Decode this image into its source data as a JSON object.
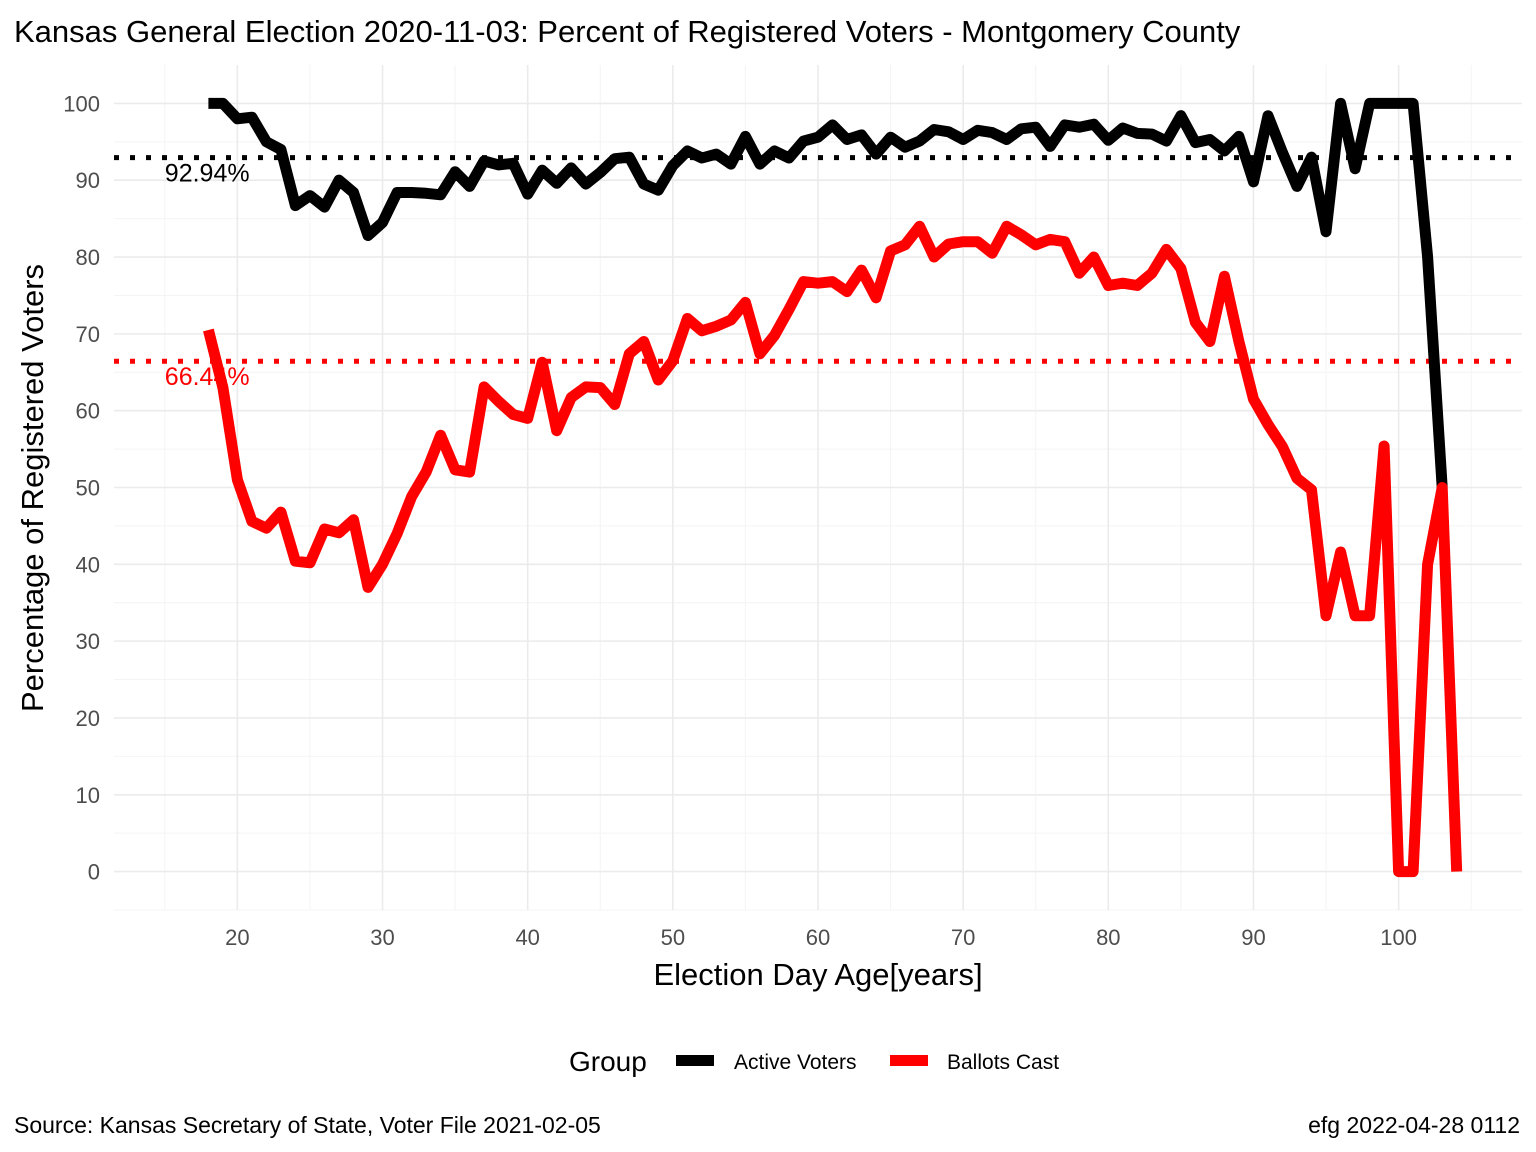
{
  "chart_data": {
    "type": "line",
    "title": "Kansas General Election 2020-11-03:  Percent of Registered Voters - Montgomery County",
    "xlabel": "Election Day Age[years]",
    "ylabel": "Percentage of Registered Voters",
    "xlim": [
      11.5,
      108.5
    ],
    "ylim": [
      -5,
      105
    ],
    "x_ticks": [
      20,
      30,
      40,
      50,
      60,
      70,
      80,
      90,
      100
    ],
    "y_ticks": [
      0,
      10,
      20,
      30,
      40,
      50,
      60,
      70,
      80,
      90,
      100
    ],
    "grid": true,
    "legend": {
      "title": "Group",
      "position": "bottom"
    },
    "series": [
      {
        "name": "Active Voters",
        "color": "#000000",
        "x": [
          18,
          19,
          20,
          21,
          22,
          23,
          24,
          25,
          26,
          27,
          28,
          29,
          30,
          31,
          32,
          33,
          34,
          35,
          36,
          37,
          38,
          39,
          40,
          41,
          42,
          43,
          44,
          45,
          46,
          47,
          48,
          49,
          50,
          51,
          52,
          53,
          54,
          55,
          56,
          57,
          58,
          59,
          60,
          61,
          62,
          63,
          64,
          65,
          66,
          67,
          68,
          69,
          70,
          71,
          72,
          73,
          74,
          75,
          76,
          77,
          78,
          79,
          80,
          81,
          82,
          83,
          84,
          85,
          86,
          87,
          88,
          89,
          90,
          91,
          92,
          93,
          94,
          95,
          96,
          97,
          98,
          99,
          100,
          101,
          102,
          103
        ],
        "y": [
          100,
          100,
          98,
          98.2,
          95,
          94,
          86.7,
          88,
          86.5,
          90,
          88.4,
          82.8,
          84.5,
          88.4,
          88.4,
          88.3,
          88.1,
          91.1,
          89.2,
          92.5,
          92,
          92.2,
          88.2,
          91.3,
          89.6,
          91.6,
          89.5,
          91,
          92.8,
          93,
          89.5,
          88.7,
          91.9,
          93.8,
          92.9,
          93.4,
          92.1,
          95.7,
          92.1,
          93.8,
          92.9,
          95.1,
          95.6,
          97.2,
          95.3,
          95.9,
          93.4,
          95.6,
          94.3,
          95.1,
          96.6,
          96.3,
          95.3,
          96.5,
          96.2,
          95.3,
          96.7,
          96.9,
          94.4,
          97.2,
          96.9,
          97.3,
          95.2,
          96.8,
          96.1,
          96,
          95.1,
          98.4,
          94.9,
          95.3,
          93.8,
          95.7,
          89.8,
          98.4,
          93.6,
          89.2,
          93,
          83.3,
          100,
          91.5,
          100,
          100,
          100,
          100,
          80,
          50
        ]
      },
      {
        "name": "Ballots Cast",
        "color": "#ff0000",
        "x": [
          18,
          19,
          20,
          21,
          22,
          23,
          24,
          25,
          26,
          27,
          28,
          29,
          30,
          31,
          32,
          33,
          34,
          35,
          36,
          37,
          38,
          39,
          40,
          41,
          42,
          43,
          44,
          45,
          46,
          47,
          48,
          49,
          50,
          51,
          52,
          53,
          54,
          55,
          56,
          57,
          58,
          59,
          60,
          61,
          62,
          63,
          64,
          65,
          66,
          67,
          68,
          69,
          70,
          71,
          72,
          73,
          74,
          75,
          76,
          77,
          78,
          79,
          80,
          81,
          82,
          83,
          84,
          85,
          86,
          87,
          88,
          89,
          90,
          91,
          92,
          93,
          94,
          95,
          96,
          97,
          98,
          99,
          100,
          101,
          102,
          103,
          104
        ],
        "y": [
          70.5,
          63,
          51,
          45.6,
          44.7,
          46.8,
          40.4,
          40.2,
          44.6,
          44.1,
          45.8,
          37,
          40,
          44,
          48.8,
          52,
          56.8,
          52.3,
          52,
          63.1,
          61.2,
          59.5,
          59,
          66.3,
          57.4,
          61.7,
          63.1,
          63,
          60.8,
          67.4,
          69,
          64,
          66.5,
          72,
          70.4,
          71,
          71.8,
          74.1,
          67.4,
          69.8,
          73.2,
          76.8,
          76.6,
          76.8,
          75.5,
          78.3,
          74.7,
          80.8,
          81.6,
          84,
          80,
          81.7,
          82,
          82,
          80.5,
          84,
          82.9,
          81.6,
          82.3,
          82,
          77.9,
          80,
          76.3,
          76.6,
          76.3,
          77.9,
          81,
          78.5,
          71.5,
          69,
          77.5,
          69,
          61.5,
          58.2,
          55.3,
          51.2,
          49.7,
          33.3,
          41.6,
          33.3,
          33.3,
          55.4,
          0,
          0,
          40,
          50,
          0
        ]
      }
    ],
    "reference_lines": [
      {
        "series": "Active Voters",
        "value": 92.94,
        "label": "92.94%",
        "color": "#000000",
        "style": "dotted"
      },
      {
        "series": "Ballots Cast",
        "value": 66.44,
        "label": "66.44%",
        "color": "#ff0000",
        "style": "dotted"
      }
    ]
  },
  "caption": {
    "left": "Source:  Kansas Secretary of State, Voter File  2021-02-05",
    "right": "efg 2022-04-28 0112"
  }
}
